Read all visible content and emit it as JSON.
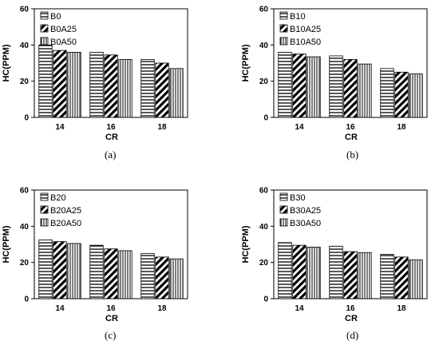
{
  "chart_data": [
    {
      "type": "bar",
      "caption": "(a)",
      "categories": [
        "14",
        "16",
        "18"
      ],
      "xlabel": "CR",
      "ylabel": "HC(PPM)",
      "ylim": [
        0,
        60
      ],
      "yticks": [
        "0",
        "20",
        "40",
        "60"
      ],
      "legend_position": "top-left",
      "grid": false,
      "series": [
        {
          "name": "B0",
          "pattern": "horizontal",
          "values": [
            40,
            36,
            32
          ]
        },
        {
          "name": "B0A25",
          "pattern": "diagonal",
          "values": [
            37,
            34.5,
            30
          ]
        },
        {
          "name": "B0A50",
          "pattern": "vertical",
          "values": [
            36,
            32,
            27
          ]
        }
      ]
    },
    {
      "type": "bar",
      "caption": "(b)",
      "categories": [
        "14",
        "16",
        "18"
      ],
      "xlabel": "CR",
      "ylabel": "HC(PPM)",
      "ylim": [
        0,
        60
      ],
      "yticks": [
        "0",
        "20",
        "40",
        "60"
      ],
      "legend_position": "top-left",
      "grid": false,
      "series": [
        {
          "name": "B10",
          "pattern": "horizontal",
          "values": [
            36,
            34,
            27
          ]
        },
        {
          "name": "B10A25",
          "pattern": "diagonal",
          "values": [
            35,
            32,
            25
          ]
        },
        {
          "name": "B10A50",
          "pattern": "vertical",
          "values": [
            33.5,
            29.5,
            24
          ]
        }
      ]
    },
    {
      "type": "bar",
      "caption": "(c)",
      "categories": [
        "14",
        "16",
        "18"
      ],
      "xlabel": "CR",
      "ylabel": "HC(PPM)",
      "ylim": [
        0,
        60
      ],
      "yticks": [
        "0",
        "20",
        "40",
        "60"
      ],
      "legend_position": "top-left",
      "grid": false,
      "series": [
        {
          "name": "B20",
          "pattern": "horizontal",
          "values": [
            32.5,
            29.5,
            25
          ]
        },
        {
          "name": "B20A25",
          "pattern": "diagonal",
          "values": [
            31.5,
            27.5,
            23
          ]
        },
        {
          "name": "B20A50",
          "pattern": "vertical",
          "values": [
            30.5,
            26.5,
            22
          ]
        }
      ]
    },
    {
      "type": "bar",
      "caption": "(d)",
      "categories": [
        "14",
        "16",
        "18"
      ],
      "xlabel": "CR",
      "ylabel": "HC(PPM)",
      "ylim": [
        0,
        60
      ],
      "yticks": [
        "0",
        "20",
        "40",
        "60"
      ],
      "legend_position": "top-left",
      "grid": false,
      "series": [
        {
          "name": "B30",
          "pattern": "horizontal",
          "values": [
            31,
            29,
            24.5
          ]
        },
        {
          "name": "B30A25",
          "pattern": "diagonal",
          "values": [
            29.5,
            26,
            23
          ]
        },
        {
          "name": "B30A50",
          "pattern": "vertical",
          "values": [
            28.5,
            25.5,
            21.5
          ]
        }
      ]
    }
  ]
}
